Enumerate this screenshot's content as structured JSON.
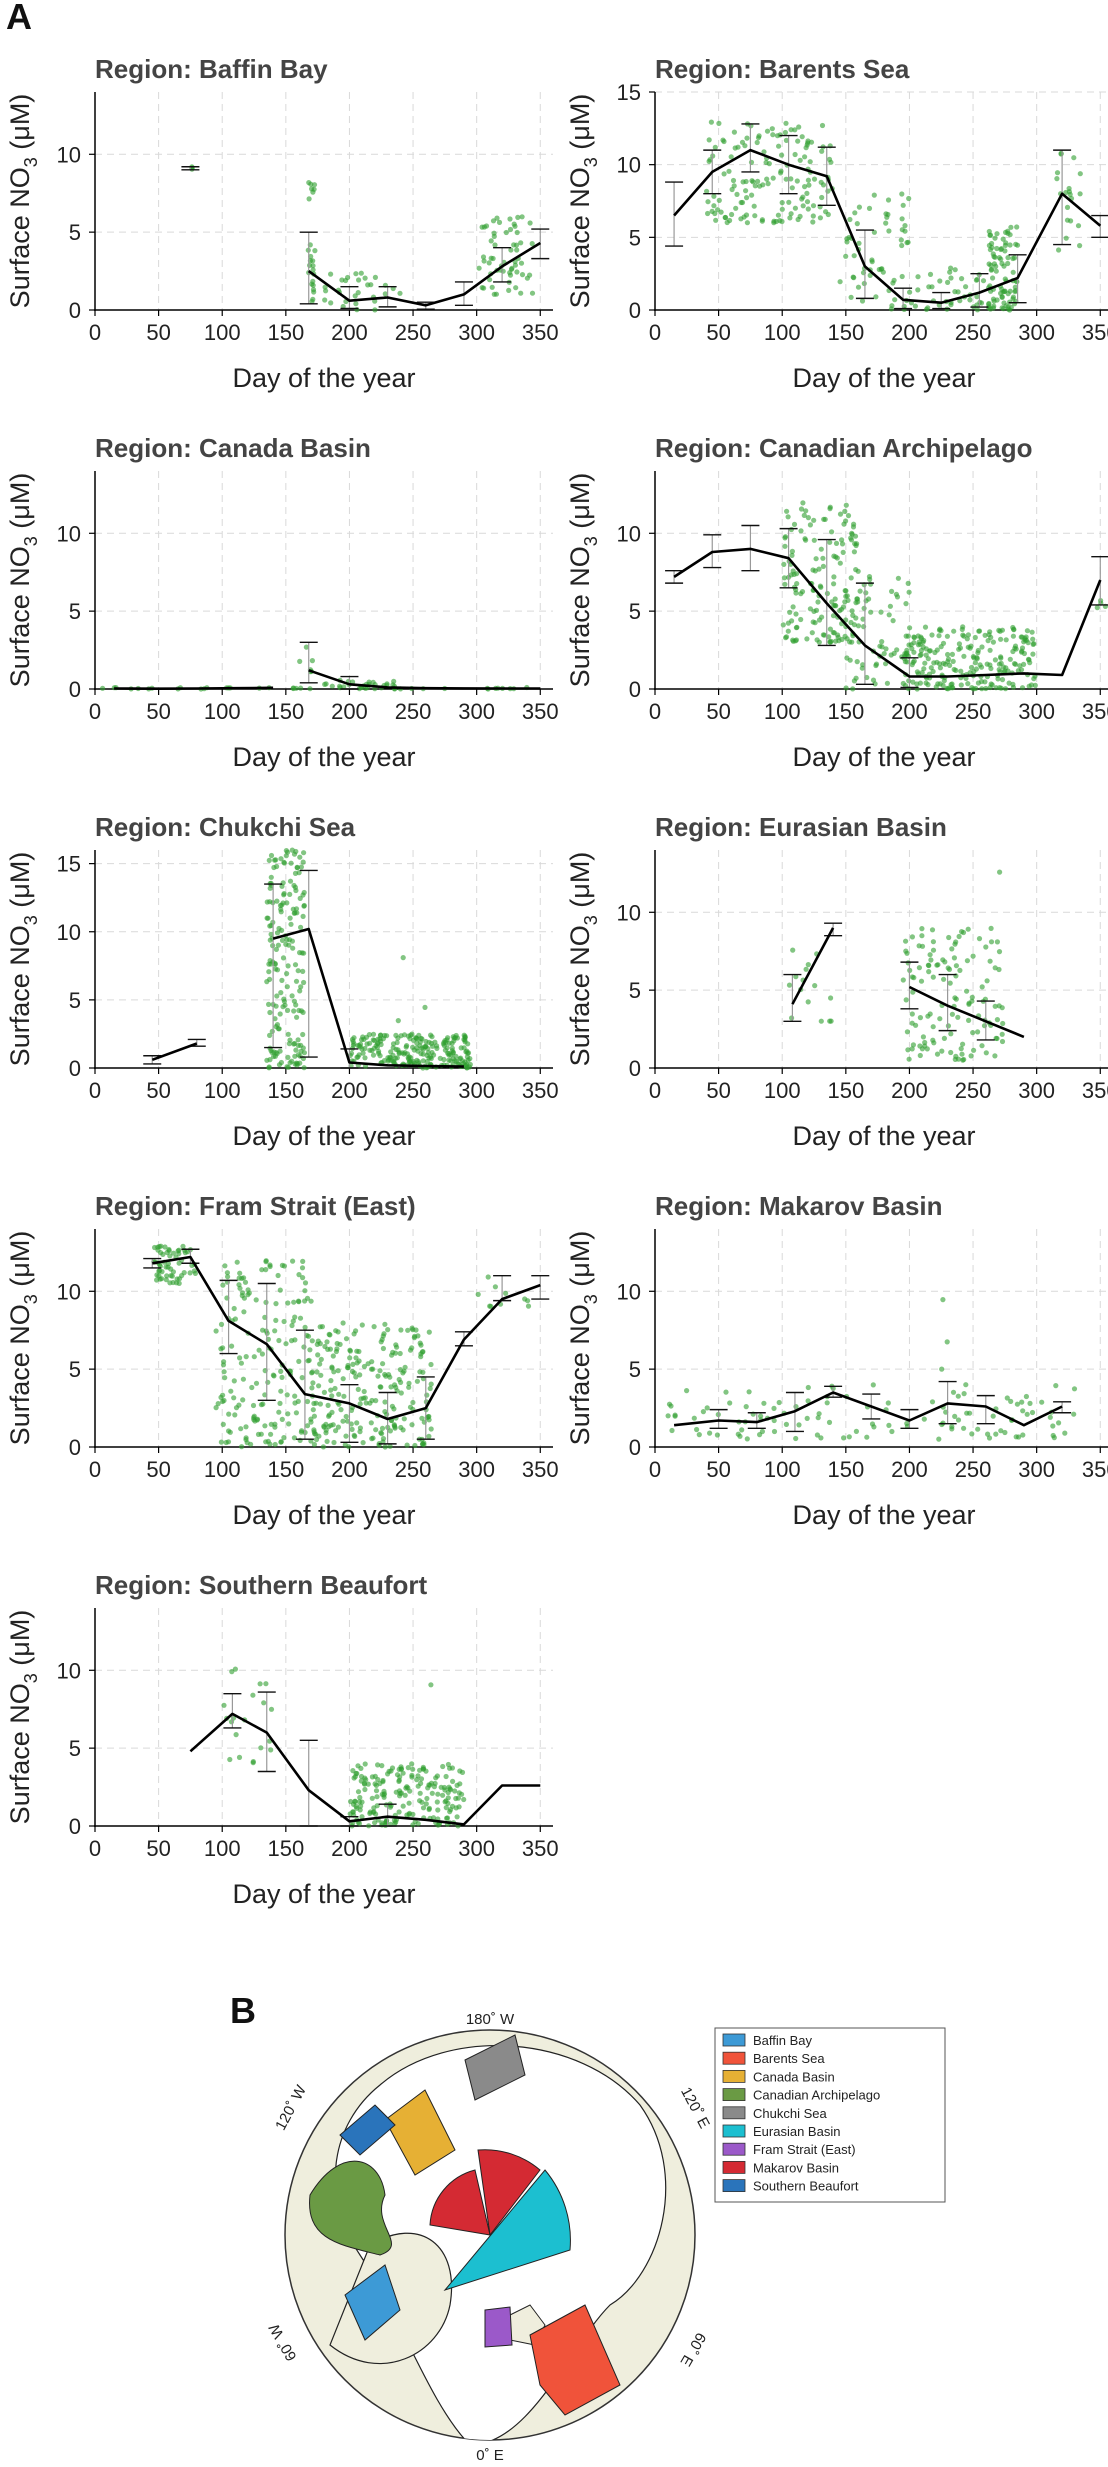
{
  "figure": {
    "panel_a_label": "A",
    "panel_b_label": "B",
    "xlabel": "Day of the year",
    "ylabel_main": "Surface NO",
    "ylabel_sub": "3",
    "ylabel_unit": " (μM)",
    "xticks": [
      "0",
      "50",
      "100",
      "150",
      "200",
      "250",
      "300",
      "350"
    ],
    "colors": {
      "points": "#2e9e2e",
      "line": "#000000",
      "grid": "#d9d9d9",
      "axis": "#000000"
    }
  },
  "chart_data": [
    {
      "type": "line",
      "title": "Region: Baffin Bay",
      "xlabel": "Day of the year",
      "ylabel": "Surface NO3 (μM)",
      "xlim": [
        0,
        360
      ],
      "ylim": [
        0,
        14
      ],
      "yticks": [
        "0",
        "5",
        "10"
      ],
      "series": [
        {
          "name": "mean",
          "x": [
            168,
            200,
            230,
            260,
            290,
            320,
            350
          ],
          "values": [
            2.5,
            0.6,
            0.8,
            0.3,
            1.0,
            2.8,
            4.3
          ]
        }
      ],
      "error_bars": [
        {
          "x": 75,
          "low": 9.0,
          "high": 9.2
        },
        {
          "x": 168,
          "low": 0.4,
          "high": 5.0
        },
        {
          "x": 200,
          "low": 0.1,
          "high": 1.5
        },
        {
          "x": 230,
          "low": 0.2,
          "high": 1.5
        },
        {
          "x": 260,
          "low": 0.05,
          "high": 0.5
        },
        {
          "x": 290,
          "low": 0.3,
          "high": 1.8
        },
        {
          "x": 320,
          "low": 1.8,
          "high": 4.0
        },
        {
          "x": 350,
          "low": 3.3,
          "high": 5.2
        }
      ],
      "scatter_clusters": [
        {
          "x": [
            73,
            78
          ],
          "y": [
            9.0,
            9.2
          ],
          "n": 3
        },
        {
          "x": 170,
          "y": [
            0,
            9.5
          ],
          "n": 25
        },
        {
          "x": [
            180,
            240
          ],
          "y": [
            0,
            2.5
          ],
          "n": 30
        },
        {
          "x": [
            300,
            345
          ],
          "y": [
            1,
            6
          ],
          "n": 60
        }
      ]
    },
    {
      "type": "line",
      "title": "Region: Barents Sea",
      "xlabel": "Day of the year",
      "ylabel": "Surface NO3 (μM)",
      "xlim": [
        0,
        360
      ],
      "ylim": [
        0,
        15
      ],
      "yticks": [
        "0",
        "5",
        "10",
        "15"
      ],
      "series": [
        {
          "name": "mean",
          "x": [
            15,
            45,
            75,
            105,
            135,
            165,
            195,
            225,
            255,
            285,
            320,
            350
          ],
          "values": [
            6.5,
            9.5,
            11.0,
            10.0,
            9.2,
            3.0,
            0.7,
            0.5,
            1.2,
            2.2,
            8.0,
            5.8
          ]
        }
      ],
      "error_bars": [
        {
          "x": 15,
          "low": 4.4,
          "high": 8.8
        },
        {
          "x": 45,
          "low": 8.0,
          "high": 11.0
        },
        {
          "x": 75,
          "low": 9.5,
          "high": 12.8
        },
        {
          "x": 105,
          "low": 8.0,
          "high": 12.0
        },
        {
          "x": 135,
          "low": 7.2,
          "high": 11.2
        },
        {
          "x": 165,
          "low": 0.8,
          "high": 5.5
        },
        {
          "x": 195,
          "low": 0.1,
          "high": 1.5
        },
        {
          "x": 225,
          "low": 0.1,
          "high": 1.2
        },
        {
          "x": 255,
          "low": 0.2,
          "high": 2.5
        },
        {
          "x": 285,
          "low": 0.5,
          "high": 3.8
        },
        {
          "x": 320,
          "low": 4.5,
          "high": 11.0
        },
        {
          "x": 350,
          "low": 5.0,
          "high": 6.5
        }
      ],
      "scatter_clusters": [
        {
          "x": [
            40,
            140
          ],
          "y": [
            6,
            13
          ],
          "n": 150
        },
        {
          "x": [
            145,
            200
          ],
          "y": [
            0,
            8
          ],
          "n": 60
        },
        {
          "x": [
            200,
            260
          ],
          "y": [
            0,
            3
          ],
          "n": 40
        },
        {
          "x": [
            262,
            285
          ],
          "y": [
            0,
            6
          ],
          "n": 90
        },
        {
          "x": [
            315,
            335
          ],
          "y": [
            4,
            11
          ],
          "n": 20
        }
      ]
    },
    {
      "type": "line",
      "title": "Region: Canada Basin",
      "xlabel": "Day of the year",
      "ylabel": "Surface NO3 (μM)",
      "xlim": [
        0,
        360
      ],
      "ylim": [
        0,
        14
      ],
      "yticks": [
        "0",
        "5",
        "10"
      ],
      "series": [
        {
          "name": "low",
          "x": [
            15,
            50,
            80,
            110,
            140
          ],
          "values": [
            0.03,
            0.02,
            0.03,
            0.05,
            0.08
          ]
        },
        {
          "name": "mean",
          "x": [
            168,
            200,
            230,
            260,
            290,
            320,
            350
          ],
          "values": [
            1.2,
            0.3,
            0.1,
            0.05,
            0.04,
            0.03,
            0.03
          ]
        }
      ],
      "error_bars": [
        {
          "x": 168,
          "low": 0.4,
          "high": 3.0
        },
        {
          "x": 200,
          "low": 0.0,
          "high": 0.8
        }
      ],
      "scatter_clusters": [
        {
          "x": [
            160,
            175
          ],
          "y": [
            0,
            3
          ],
          "n": 6
        },
        {
          "x": [
            180,
            240
          ],
          "y": [
            0,
            0.6
          ],
          "n": 25
        },
        {
          "x": [
            5,
            350
          ],
          "y": [
            0,
            0.1
          ],
          "n": 40
        }
      ]
    },
    {
      "type": "line",
      "title": "Region: Canadian Archipelago",
      "xlabel": "Day of the year",
      "ylabel": "Surface NO3 (μM)",
      "xlim": [
        0,
        360
      ],
      "ylim": [
        0,
        14
      ],
      "yticks": [
        "0",
        "5",
        "10"
      ],
      "series": [
        {
          "name": "mean",
          "x": [
            15,
            45,
            75,
            105,
            135,
            165,
            200,
            230,
            260,
            290,
            320,
            350
          ],
          "values": [
            7.2,
            8.8,
            9.0,
            8.4,
            5.5,
            2.8,
            0.8,
            0.8,
            0.9,
            1.0,
            0.9,
            7.0
          ]
        }
      ],
      "error_bars": [
        {
          "x": 15,
          "low": 6.8,
          "high": 7.6
        },
        {
          "x": 45,
          "low": 7.8,
          "high": 9.9
        },
        {
          "x": 75,
          "low": 7.6,
          "high": 10.5
        },
        {
          "x": 105,
          "low": 6.5,
          "high": 10.3
        },
        {
          "x": 135,
          "low": 2.8,
          "high": 9.6
        },
        {
          "x": 165,
          "low": 0.3,
          "high": 6.8
        },
        {
          "x": 200,
          "low": 0.1,
          "high": 2.0
        },
        {
          "x": 350,
          "low": 5.4,
          "high": 8.5
        }
      ],
      "scatter_clusters": [
        {
          "x": [
            100,
            160
          ],
          "y": [
            3,
            12
          ],
          "n": 160
        },
        {
          "x": [
            150,
            200
          ],
          "y": [
            0,
            8
          ],
          "n": 60
        },
        {
          "x": [
            195,
            300
          ],
          "y": [
            0,
            4
          ],
          "n": 230
        },
        {
          "x": [
            345,
            355
          ],
          "y": [
            5,
            9
          ],
          "n": 4
        }
      ]
    },
    {
      "type": "line",
      "title": "Region: Chukchi Sea",
      "xlabel": "Day of the year",
      "ylabel": "Surface NO3 (μM)",
      "xlim": [
        0,
        360
      ],
      "ylim": [
        0,
        16
      ],
      "yticks": [
        "0",
        "5",
        "10",
        "15"
      ],
      "series": [
        {
          "name": "spring",
          "x": [
            45,
            80
          ],
          "values": [
            0.6,
            1.8
          ]
        },
        {
          "name": "mean",
          "x": [
            140,
            168,
            200,
            230,
            260,
            290
          ],
          "values": [
            9.5,
            10.2,
            0.4,
            0.2,
            0.15,
            0.1
          ]
        }
      ],
      "error_bars": [
        {
          "x": 45,
          "low": 0.3,
          "high": 0.9
        },
        {
          "x": 80,
          "low": 1.6,
          "high": 2.1
        },
        {
          "x": 140,
          "low": 1.5,
          "high": 13.5
        },
        {
          "x": 168,
          "low": 0.8,
          "high": 14.5
        },
        {
          "x": 200,
          "low": 0.0,
          "high": 1.4
        }
      ],
      "scatter_clusters": [
        {
          "x": [
            135,
            165
          ],
          "y": [
            0,
            16
          ],
          "n": 180
        },
        {
          "x": [
            200,
            295
          ],
          "y": [
            0,
            2.5
          ],
          "n": 230
        },
        {
          "x": [
            230,
            260
          ],
          "y": [
            3,
            15
          ],
          "n": 3
        }
      ]
    },
    {
      "type": "line",
      "title": "Region: Eurasian Basin",
      "xlabel": "Day of the year",
      "ylabel": "Surface NO3 (μM)",
      "xlim": [
        0,
        360
      ],
      "ylim": [
        0,
        14
      ],
      "yticks": [
        "0",
        "5",
        "10"
      ],
      "series": [
        {
          "name": "spring",
          "x": [
            108,
            140
          ],
          "values": [
            4.1,
            9.0
          ]
        },
        {
          "name": "mean",
          "x": [
            200,
            230,
            260,
            290
          ],
          "values": [
            5.2,
            4.0,
            3.0,
            2.0
          ]
        }
      ],
      "error_bars": [
        {
          "x": 108,
          "low": 3.0,
          "high": 6.0
        },
        {
          "x": 140,
          "low": 8.5,
          "high": 9.3
        },
        {
          "x": 200,
          "low": 3.8,
          "high": 6.8
        },
        {
          "x": 230,
          "low": 2.4,
          "high": 6.0
        },
        {
          "x": 260,
          "low": 1.8,
          "high": 4.3
        }
      ],
      "scatter_clusters": [
        {
          "x": [
            105,
            140
          ],
          "y": [
            3,
            9.5
          ],
          "n": 15
        },
        {
          "x": [
            195,
            275
          ],
          "y": [
            0.5,
            9
          ],
          "n": 130
        },
        {
          "x": [
            268,
            272
          ],
          "y": [
            12.5,
            13
          ],
          "n": 1
        }
      ]
    },
    {
      "type": "line",
      "title": "Region: Fram Strait (East)",
      "xlabel": "Day of the year",
      "ylabel": "Surface NO3 (μM)",
      "xlim": [
        0,
        360
      ],
      "ylim": [
        0,
        14
      ],
      "yticks": [
        "0",
        "5",
        "10"
      ],
      "series": [
        {
          "name": "mean",
          "x": [
            45,
            75,
            105,
            135,
            165,
            200,
            230,
            260,
            290,
            320,
            350
          ],
          "values": [
            11.8,
            12.2,
            8.1,
            6.6,
            3.4,
            2.8,
            1.8,
            2.5,
            6.9,
            9.5,
            10.4
          ]
        }
      ],
      "error_bars": [
        {
          "x": 45,
          "low": 11.5,
          "high": 12.1
        },
        {
          "x": 75,
          "low": 11.8,
          "high": 12.7
        },
        {
          "x": 105,
          "low": 6.0,
          "high": 10.7
        },
        {
          "x": 135,
          "low": 3.0,
          "high": 10.5
        },
        {
          "x": 165,
          "low": 0.5,
          "high": 7.5
        },
        {
          "x": 200,
          "low": 0.3,
          "high": 4.0
        },
        {
          "x": 230,
          "low": 0.2,
          "high": 3.5
        },
        {
          "x": 260,
          "low": 0.5,
          "high": 4.5
        },
        {
          "x": 290,
          "low": 6.5,
          "high": 7.4
        },
        {
          "x": 320,
          "low": 9.4,
          "high": 11.0
        },
        {
          "x": 350,
          "low": 9.5,
          "high": 11.0
        }
      ],
      "scatter_clusters": [
        {
          "x": [
            45,
            80
          ],
          "y": [
            10.5,
            13
          ],
          "n": 60
        },
        {
          "x": [
            95,
            170
          ],
          "y": [
            0,
            12
          ],
          "n": 180
        },
        {
          "x": [
            170,
            265
          ],
          "y": [
            0,
            8
          ],
          "n": 240
        },
        {
          "x": [
            300,
            345
          ],
          "y": [
            9,
            11
          ],
          "n": 10
        }
      ]
    },
    {
      "type": "line",
      "title": "Region: Makarov Basin",
      "xlabel": "Day of the year",
      "ylabel": "Surface NO3 (μM)",
      "xlim": [
        0,
        360
      ],
      "ylim": [
        0,
        14
      ],
      "yticks": [
        "0",
        "5",
        "10"
      ],
      "series": [
        {
          "name": "mean",
          "x": [
            15,
            50,
            80,
            110,
            140,
            170,
            200,
            230,
            260,
            290,
            320
          ],
          "values": [
            1.4,
            1.7,
            1.6,
            2.3,
            3.5,
            2.6,
            1.7,
            2.8,
            2.6,
            1.4,
            2.6
          ]
        }
      ],
      "error_bars": [
        {
          "x": 50,
          "low": 1.2,
          "high": 2.4
        },
        {
          "x": 80,
          "low": 1.2,
          "high": 2.2
        },
        {
          "x": 110,
          "low": 1.0,
          "high": 3.5
        },
        {
          "x": 140,
          "low": 3.2,
          "high": 3.9
        },
        {
          "x": 170,
          "low": 1.8,
          "high": 3.4
        },
        {
          "x": 200,
          "low": 1.2,
          "high": 2.4
        },
        {
          "x": 230,
          "low": 1.5,
          "high": 4.2
        },
        {
          "x": 260,
          "low": 1.5,
          "high": 3.3
        },
        {
          "x": 320,
          "low": 2.2,
          "high": 2.9
        }
      ],
      "scatter_clusters": [
        {
          "x": [
            10,
            330
          ],
          "y": [
            0.5,
            4
          ],
          "n": 120
        },
        {
          "x": [
            225,
            235
          ],
          "y": [
            5,
            10
          ],
          "n": 3
        }
      ]
    },
    {
      "type": "line",
      "title": "Region: Southern Beaufort",
      "xlabel": "Day of the year",
      "ylabel": "Surface NO3 (μM)",
      "xlim": [
        0,
        360
      ],
      "ylim": [
        0,
        14
      ],
      "yticks": [
        "0",
        "5",
        "10"
      ],
      "series": [
        {
          "name": "mean",
          "x": [
            75,
            108,
            135,
            168,
            200,
            230,
            260,
            290,
            320,
            350
          ],
          "values": [
            4.8,
            7.2,
            6.0,
            2.3,
            0.3,
            0.6,
            0.4,
            0.1,
            2.6,
            2.6
          ]
        }
      ],
      "error_bars": [
        {
          "x": 108,
          "low": 6.3,
          "high": 8.5
        },
        {
          "x": 135,
          "low": 3.5,
          "high": 8.6
        },
        {
          "x": 168,
          "low": 0.0,
          "high": 5.5
        },
        {
          "x": 200,
          "low": 0.0,
          "high": 0.6
        },
        {
          "x": 230,
          "low": 0.0,
          "high": 1.4
        }
      ],
      "scatter_clusters": [
        {
          "x": [
            100,
            140
          ],
          "y": [
            4,
            11
          ],
          "n": 20
        },
        {
          "x": [
            200,
            290
          ],
          "y": [
            0,
            4
          ],
          "n": 200
        },
        {
          "x": [
            262,
            266
          ],
          "y": [
            9,
            9.3
          ],
          "n": 1
        }
      ]
    }
  ],
  "map": {
    "labels": {
      "top": "180˚ W",
      "left_upper": "120˚ W",
      "left_lower": "60˚ W",
      "right_upper": "120˚ E",
      "right_lower": "60˚ E",
      "bottom": "0˚ E"
    },
    "legend": [
      {
        "name": "Baffin Bay",
        "color": "#3d9ad6"
      },
      {
        "name": "Barents Sea",
        "color": "#f0533a"
      },
      {
        "name": "Canada Basin",
        "color": "#e6b034"
      },
      {
        "name": "Canadian Archipelago",
        "color": "#6a9a44"
      },
      {
        "name": "Chukchi Sea",
        "color": "#8a8a8a"
      },
      {
        "name": "Eurasian Basin",
        "color": "#1cbfd0"
      },
      {
        "name": "Fram Strait (East)",
        "color": "#9b59c9"
      },
      {
        "name": "Makarov Basin",
        "color": "#d42a33"
      },
      {
        "name": "Southern Beaufort",
        "color": "#2a74bb"
      }
    ],
    "land_color": "#efeedd",
    "ocean_color": "#ffffff"
  }
}
